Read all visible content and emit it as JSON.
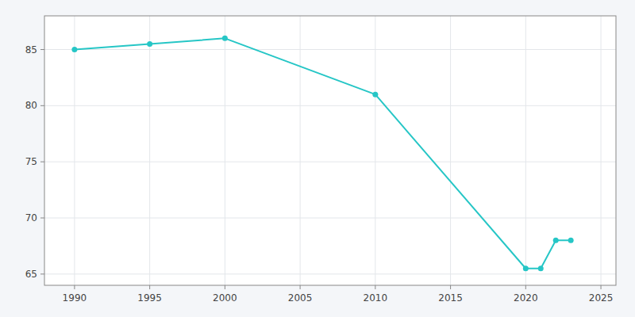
{
  "chart_data": {
    "type": "line",
    "x": [
      1990,
      1995,
      2000,
      2010,
      2020,
      2021,
      2022,
      2023
    ],
    "values": [
      85.0,
      85.5,
      86.0,
      81.0,
      65.5,
      65.5,
      68.0,
      68.0
    ],
    "color": "#26C6C6",
    "marker": "circle",
    "xlim": [
      1988,
      2026
    ],
    "ylim": [
      64,
      88
    ],
    "xticks": [
      1990,
      1995,
      2000,
      2005,
      2010,
      2015,
      2020,
      2025
    ],
    "yticks": [
      65,
      70,
      75,
      80,
      85
    ],
    "grid": true
  }
}
